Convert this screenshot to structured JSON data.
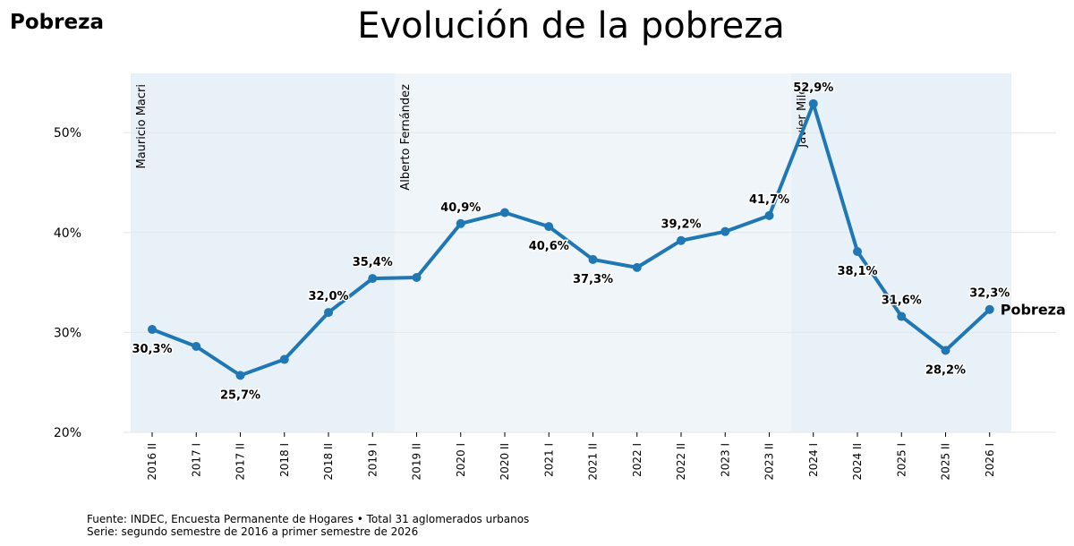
{
  "header": {
    "corner_title": "Pobreza",
    "title": "Evolución de la pobreza"
  },
  "footer": {
    "source": "Fuente: INDEC, Encuesta Permanente de Hogares • Total 31 aglomerados urbanos",
    "series_note": "Serie: segundo semestre de 2016 a primer semestre de 2026"
  },
  "chart_data": {
    "type": "line",
    "title": "Evolución de la pobreza",
    "xlabel": "",
    "ylabel": "",
    "ylim": [
      20,
      56
    ],
    "yticks": [
      20,
      30,
      40,
      50
    ],
    "ytick_labels": [
      "20%",
      "30%",
      "40%",
      "50%"
    ],
    "grid": "horizontal",
    "categories": [
      "2016 II",
      "2017 I",
      "2017 II",
      "2018 I",
      "2018 II",
      "2019 I",
      "2019 II",
      "2020 I",
      "2020 II",
      "2021 I",
      "2021 II",
      "2022 I",
      "2022 II",
      "2023 I",
      "2023 II",
      "2024 I",
      "2024 II",
      "2025 I",
      "2025 II",
      "2026 I"
    ],
    "series": [
      {
        "name": "Pobreza",
        "color": "#1f77b4",
        "values": [
          30.3,
          28.6,
          25.7,
          27.3,
          32.0,
          35.4,
          35.5,
          40.9,
          42.0,
          40.6,
          37.3,
          36.5,
          39.2,
          40.1,
          41.7,
          52.9,
          38.1,
          31.6,
          28.2,
          32.3
        ]
      }
    ],
    "data_labels": [
      {
        "index": 0,
        "text": "30,3%",
        "pos": "below"
      },
      {
        "index": 2,
        "text": "25,7%",
        "pos": "below"
      },
      {
        "index": 4,
        "text": "32,0%",
        "pos": "above"
      },
      {
        "index": 5,
        "text": "35,4%",
        "pos": "above"
      },
      {
        "index": 7,
        "text": "40,9%",
        "pos": "above"
      },
      {
        "index": 9,
        "text": "40,6%",
        "pos": "below"
      },
      {
        "index": 10,
        "text": "37,3%",
        "pos": "below"
      },
      {
        "index": 12,
        "text": "39,2%",
        "pos": "above"
      },
      {
        "index": 14,
        "text": "41,7%",
        "pos": "above"
      },
      {
        "index": 15,
        "text": "52,9%",
        "pos": "above"
      },
      {
        "index": 16,
        "text": "38,1%",
        "pos": "below"
      },
      {
        "index": 17,
        "text": "31,6%",
        "pos": "above"
      },
      {
        "index": 18,
        "text": "28,2%",
        "pos": "below"
      },
      {
        "index": 19,
        "text": "32,3%",
        "pos": "above"
      }
    ],
    "end_label": "Pobreza",
    "periods": [
      {
        "label": "Mauricio Macri",
        "start_index": 0,
        "end_index": 5,
        "color": "#e9f1f8"
      },
      {
        "label": "Alberto Fernández",
        "start_index": 6,
        "end_index": 14,
        "color": "#f0f5f9"
      },
      {
        "label": "Javier Milei",
        "start_index": 15,
        "end_index": 19,
        "color": "#e9f1f8"
      }
    ]
  }
}
